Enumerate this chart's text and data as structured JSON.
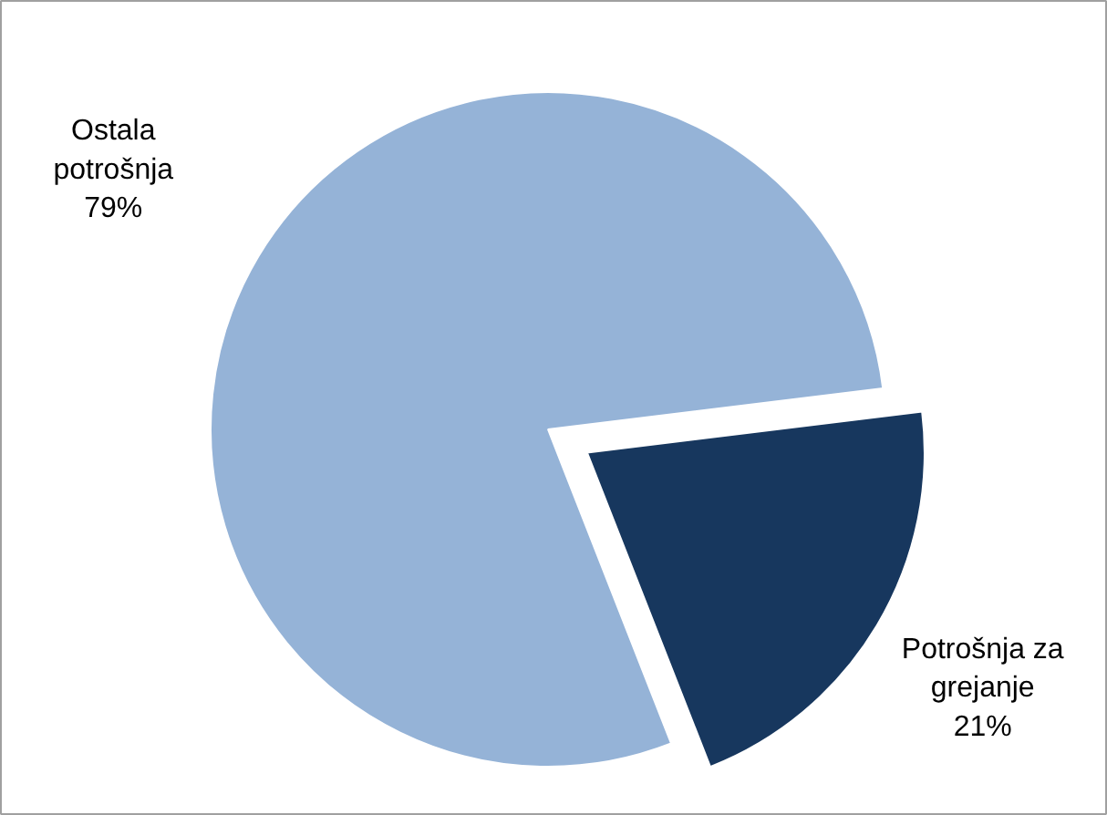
{
  "chart_data": {
    "type": "pie",
    "categories": [
      "Ostala potrošnja",
      "Potrošnja za grejanje"
    ],
    "values": [
      79,
      21
    ],
    "colors": [
      "#95b3d7",
      "#17375e"
    ],
    "value_labels": [
      "79%",
      "21%"
    ]
  }
}
